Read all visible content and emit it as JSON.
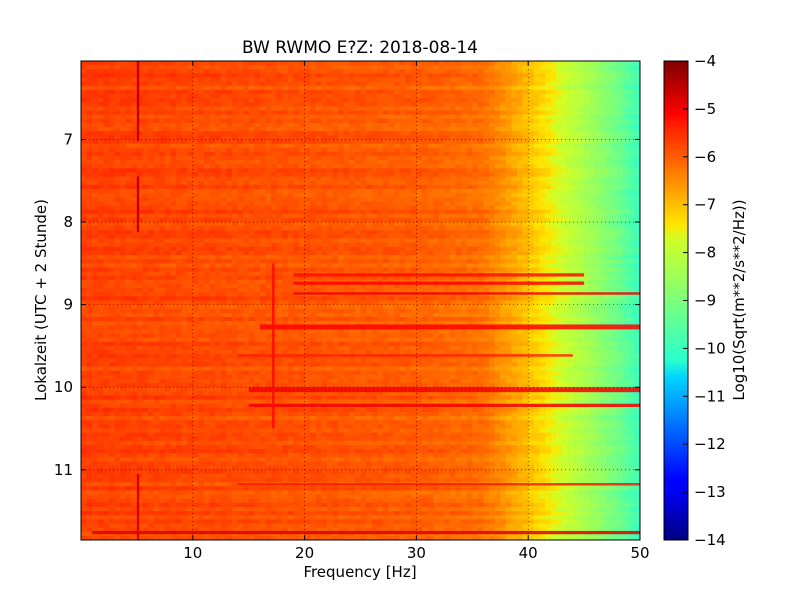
{
  "chart_data": {
    "type": "heatmap",
    "title": "BW RWMO E?Z: 2018-08-14",
    "xlabel": "Frequency [Hz]",
    "ylabel": "Lokalzeit (UTC + 2 Stunde)",
    "xlim": [
      0,
      50
    ],
    "ylim": [
      11.85,
      6.05
    ],
    "y_inverted": true,
    "x_ticks": [
      10,
      20,
      30,
      40,
      50
    ],
    "y_ticks": [
      7,
      8,
      9,
      10,
      11
    ],
    "grid": true,
    "colorbar": {
      "label": "Log10(Sqrt(m**2/s**2/Hz))",
      "range": [
        -14,
        -4
      ],
      "ticks": [
        -4,
        -5,
        -6,
        -7,
        -8,
        -9,
        -10,
        -11,
        -12,
        -13,
        -14
      ],
      "colormap": "jet"
    },
    "frequency_profile": [
      [
        0,
        -5.7
      ],
      [
        5,
        -5.75
      ],
      [
        10,
        -5.8
      ],
      [
        20,
        -5.9
      ],
      [
        30,
        -6.0
      ],
      [
        36,
        -6.2
      ],
      [
        39,
        -6.8
      ],
      [
        42,
        -7.5
      ],
      [
        45,
        -8.3
      ],
      [
        48,
        -9.2
      ],
      [
        50,
        -10.0
      ]
    ],
    "features": [
      {
        "type": "band",
        "time_start": 8.62,
        "time_end": 8.66,
        "freq_start": 19,
        "freq_end": 45,
        "value": -5.2
      },
      {
        "type": "band",
        "time_start": 8.72,
        "time_end": 8.76,
        "freq_start": 19,
        "freq_end": 45,
        "value": -5.1
      },
      {
        "type": "band",
        "time_start": 8.85,
        "time_end": 8.88,
        "freq_start": 19,
        "freq_end": 50,
        "value": -5.0
      },
      {
        "type": "band",
        "time_start": 9.24,
        "time_end": 9.3,
        "freq_start": 16,
        "freq_end": 50,
        "value": -5.1
      },
      {
        "type": "band",
        "time_start": 9.6,
        "time_end": 9.63,
        "freq_start": 14,
        "freq_end": 44,
        "value": -5.4
      },
      {
        "type": "band",
        "time_start": 10.0,
        "time_end": 10.06,
        "freq_start": 15,
        "freq_end": 50,
        "value": -5.0
      },
      {
        "type": "band",
        "time_start": 10.2,
        "time_end": 10.24,
        "freq_start": 15,
        "freq_end": 50,
        "value": -5.0
      },
      {
        "type": "band",
        "time_start": 11.16,
        "time_end": 11.19,
        "freq_start": 14,
        "freq_end": 50,
        "value": -5.3
      },
      {
        "type": "band",
        "time_start": 11.74,
        "time_end": 11.78,
        "freq_start": 1,
        "freq_end": 50,
        "value": -4.8
      },
      {
        "type": "line",
        "freq": 5.1,
        "time_start": 6.05,
        "time_end": 7.02,
        "value": -4.6
      },
      {
        "type": "line",
        "freq": 5.1,
        "time_start": 7.45,
        "time_end": 8.12,
        "value": -4.6
      },
      {
        "type": "line",
        "freq": 5.1,
        "time_start": 11.05,
        "time_end": 11.85,
        "value": -4.8
      },
      {
        "type": "line",
        "freq": 17.2,
        "time_start": 8.5,
        "time_end": 10.5,
        "value": -5.2
      }
    ]
  }
}
